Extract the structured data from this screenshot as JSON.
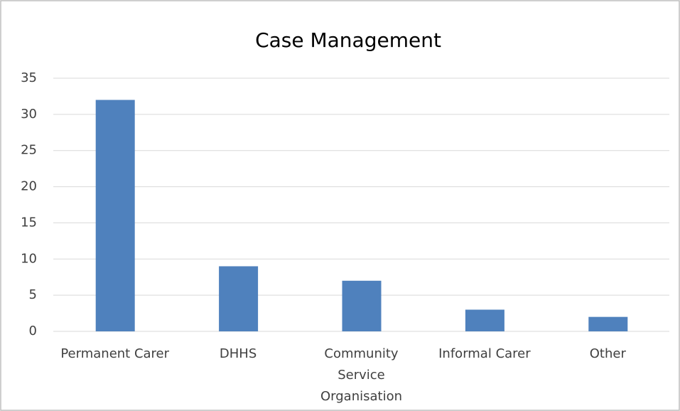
{
  "chart_data": {
    "type": "bar",
    "title": "Case Management",
    "categories": [
      "Permanent Carer",
      "DHHS",
      "Community Service Organisation",
      "Informal Carer",
      "Other"
    ],
    "values": [
      32,
      9,
      7,
      3,
      2
    ],
    "color": "#4f81bd",
    "ylim": [
      0,
      35
    ],
    "yticks": [
      0,
      5,
      10,
      15,
      20,
      25,
      30,
      35
    ],
    "grid": true
  }
}
